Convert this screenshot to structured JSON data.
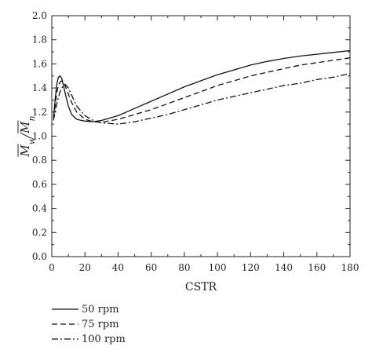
{
  "chart_data": {
    "type": "line",
    "title": "",
    "xlabel": "CSTR",
    "ylabel": {
      "num_symbol": "M",
      "num_sub": "w",
      "den_symbol": "M",
      "den_sub": "n"
    },
    "xlim": [
      0,
      180
    ],
    "ylim": [
      0.0,
      2.0
    ],
    "xticks": [
      0,
      20,
      40,
      60,
      80,
      100,
      120,
      140,
      160,
      180
    ],
    "yticks": [
      0.0,
      0.2,
      0.4,
      0.6,
      0.8,
      1.0,
      1.2,
      1.4,
      1.6,
      1.8,
      2.0
    ],
    "legend_position": "below-left",
    "grid": false,
    "series": [
      {
        "name": "50 rpm",
        "style": "solid",
        "points": [
          [
            1,
            1.15
          ],
          [
            2,
            1.3
          ],
          [
            3,
            1.43
          ],
          [
            4,
            1.49
          ],
          [
            5,
            1.5
          ],
          [
            6,
            1.48
          ],
          [
            7,
            1.42
          ],
          [
            8,
            1.36
          ],
          [
            10,
            1.25
          ],
          [
            12,
            1.18
          ],
          [
            15,
            1.14
          ],
          [
            18,
            1.13
          ],
          [
            20,
            1.125
          ],
          [
            25,
            1.12
          ],
          [
            30,
            1.13
          ],
          [
            40,
            1.17
          ],
          [
            50,
            1.23
          ],
          [
            60,
            1.29
          ],
          [
            70,
            1.35
          ],
          [
            80,
            1.41
          ],
          [
            90,
            1.46
          ],
          [
            100,
            1.51
          ],
          [
            110,
            1.55
          ],
          [
            120,
            1.59
          ],
          [
            130,
            1.62
          ],
          [
            140,
            1.645
          ],
          [
            150,
            1.665
          ],
          [
            160,
            1.68
          ],
          [
            170,
            1.695
          ],
          [
            180,
            1.71
          ]
        ]
      },
      {
        "name": "75 rpm",
        "style": "dashed",
        "points": [
          [
            1,
            1.15
          ],
          [
            2,
            1.25
          ],
          [
            3,
            1.36
          ],
          [
            4,
            1.42
          ],
          [
            5,
            1.45
          ],
          [
            6,
            1.46
          ],
          [
            7,
            1.45
          ],
          [
            8,
            1.42
          ],
          [
            10,
            1.35
          ],
          [
            12,
            1.28
          ],
          [
            15,
            1.2
          ],
          [
            20,
            1.14
          ],
          [
            25,
            1.12
          ],
          [
            30,
            1.115
          ],
          [
            40,
            1.14
          ],
          [
            50,
            1.18
          ],
          [
            60,
            1.22
          ],
          [
            70,
            1.27
          ],
          [
            80,
            1.32
          ],
          [
            90,
            1.37
          ],
          [
            100,
            1.42
          ],
          [
            110,
            1.46
          ],
          [
            120,
            1.5
          ],
          [
            130,
            1.53
          ],
          [
            140,
            1.56
          ],
          [
            150,
            1.59
          ],
          [
            160,
            1.61
          ],
          [
            170,
            1.63
          ],
          [
            180,
            1.65
          ]
        ]
      },
      {
        "name": "100 rpm",
        "style": "dashdot",
        "points": [
          [
            1,
            1.13
          ],
          [
            2,
            1.2
          ],
          [
            3,
            1.27
          ],
          [
            4,
            1.32
          ],
          [
            5,
            1.37
          ],
          [
            6,
            1.4
          ],
          [
            7,
            1.42
          ],
          [
            8,
            1.43
          ],
          [
            10,
            1.4
          ],
          [
            12,
            1.34
          ],
          [
            15,
            1.25
          ],
          [
            20,
            1.17
          ],
          [
            25,
            1.13
          ],
          [
            30,
            1.11
          ],
          [
            40,
            1.1
          ],
          [
            50,
            1.12
          ],
          [
            60,
            1.15
          ],
          [
            70,
            1.18
          ],
          [
            80,
            1.22
          ],
          [
            90,
            1.26
          ],
          [
            100,
            1.3
          ],
          [
            110,
            1.33
          ],
          [
            120,
            1.36
          ],
          [
            130,
            1.39
          ],
          [
            140,
            1.42
          ],
          [
            150,
            1.44
          ],
          [
            160,
            1.47
          ],
          [
            170,
            1.49
          ],
          [
            180,
            1.52
          ]
        ]
      }
    ]
  }
}
